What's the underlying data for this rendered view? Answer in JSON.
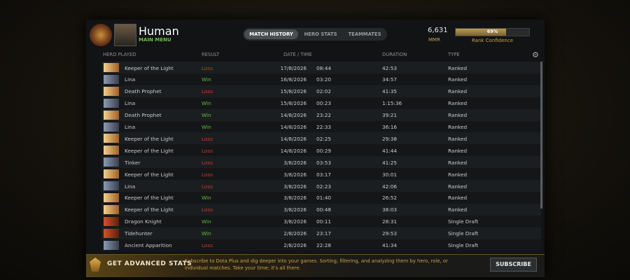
{
  "profile": {
    "name": "Human",
    "status": "MAIN MENU"
  },
  "tabs": [
    "MATCH HISTORY",
    "HERO STATS",
    "TEAMMATES"
  ],
  "mmr": {
    "value": "6,631",
    "label": "MMR"
  },
  "rank_confidence": {
    "percent": {
      "value": 69,
      "label": "69%"
    },
    "label": "Rank Confidence"
  },
  "table": {
    "columns": [
      "HERO PLAYED",
      "RESULT",
      "DATE / TIME",
      "DURATION",
      "TYPE"
    ],
    "rows": [
      [
        "Keeper of the Light",
        "Loss",
        "17/8/2026",
        "08:44",
        "42:53",
        "Ranked"
      ],
      [
        "Lina",
        "Win",
        "16/8/2026",
        "03:20",
        "34:57",
        "Ranked"
      ],
      [
        "Death Prophet",
        "Loss",
        "15/8/2026",
        "02:02",
        "41:35",
        "Ranked"
      ],
      [
        "Lina",
        "Win",
        "15/8/2026",
        "00:23",
        "1:15:36",
        "Ranked"
      ],
      [
        "Death Prophet",
        "Win",
        "14/8/2026",
        "23:22",
        "39:21",
        "Ranked"
      ],
      [
        "Lina",
        "Win",
        "14/8/2026",
        "22:33",
        "36:16",
        "Ranked"
      ],
      [
        "Keeper of the Light",
        "Loss",
        "14/8/2026",
        "02:25",
        "29:38",
        "Ranked"
      ],
      [
        "Keeper of the Light",
        "Loss",
        "14/8/2026",
        "00:29",
        "41:44",
        "Ranked"
      ],
      [
        "Tinker",
        "Loss",
        "3/8/2026",
        "03:53",
        "41:25",
        "Ranked"
      ],
      [
        "Keeper of the Light",
        "Loss",
        "3/8/2026",
        "03:17",
        "30:01",
        "Ranked"
      ],
      [
        "Lina",
        "Loss",
        "3/8/2026",
        "02:23",
        "42:06",
        "Ranked"
      ],
      [
        "Keeper of the Light",
        "Win",
        "3/8/2026",
        "01:40",
        "26:52",
        "Ranked"
      ],
      [
        "Keeper of the Light",
        "Loss",
        "3/8/2026",
        "00:48",
        "38:03",
        "Ranked"
      ],
      [
        "Dragon Knight",
        "Win",
        "3/8/2026",
        "00:11",
        "28:31",
        "Single Draft"
      ],
      [
        "Tidehunter",
        "Win",
        "2/8/2026",
        "23:17",
        "29:53",
        "Single Draft"
      ],
      [
        "Ancient Apparition",
        "Loss",
        "2/8/2026",
        "22:28",
        "41:34",
        "Single Draft"
      ]
    ]
  },
  "banner": {
    "title": "GET ADVANCED STATS",
    "text": "Subscribe to Dota Plus and dig deeper into your games. Sorting, filtering, and analyzing them by hero, role, or individual matches. Take your time; it's all there.",
    "button": "SUBSCRIBE"
  }
}
